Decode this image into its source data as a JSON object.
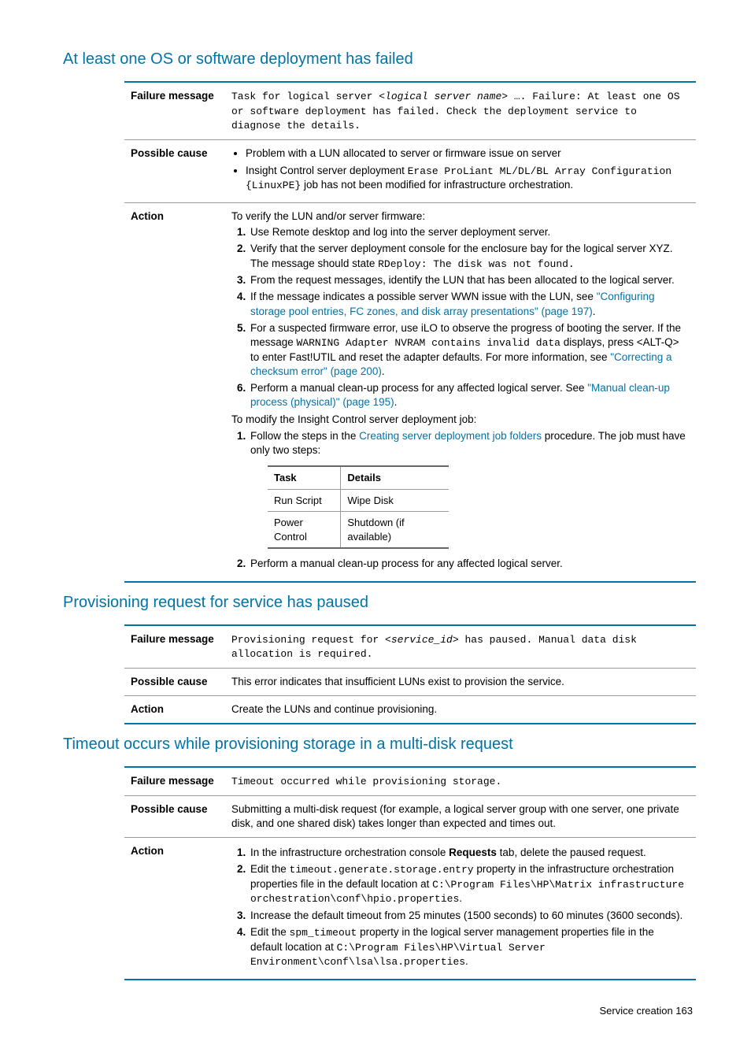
{
  "section1": {
    "heading": "At least one OS or software deployment has failed",
    "labels": {
      "failure": "Failure message",
      "cause": "Possible cause",
      "action": "Action"
    },
    "failure_pre": "Task for logical server ",
    "failure_var": "<logical server name>",
    "failure_post1": " …. Failure: At least one OS or software deployment has failed. Check the deployment service to diagnose the details.",
    "cause_item1": "Problem with a LUN allocated to server or firmware issue on server",
    "cause_item2_pre": "Insight Control server deployment ",
    "cause_item2_code": "Erase ProLiant ML/DL/BL Array Configuration {LinuxPE}",
    "cause_item2_post": " job has not been modified for infrastructure orchestration.",
    "action_intro": "To verify the LUN and/or server firmware:",
    "step1": "Use Remote desktop and log into the server deployment server.",
    "step2_pre": "Verify that the server deployment console for the enclosure bay for the logical server XYZ. The message should state ",
    "step2_code": "RDeploy: The disk was not found.",
    "step3": "From the request messages, identify the LUN that has been allocated to the logical server.",
    "step4_pre": "If the message indicates a possible server WWN issue with the LUN, see ",
    "step4_link": "\"Configuring storage pool entries, FC zones, and disk array presentations\" (page 197)",
    "step4_post": ".",
    "step5_pre": "For a suspected firmware error, use iLO to observe the progress of booting the server. If the message ",
    "step5_code": "WARNING Adapter NVRAM contains invalid data",
    "step5_mid": " displays, press <ALT-Q> to enter Fast!UTIL and reset the adapter defaults. For more information, see ",
    "step5_link": "\"Correcting a checksum error\" (page 200)",
    "step5_post": ".",
    "step6_pre": "Perform a manual clean-up process for any affected logical server. See ",
    "step6_link": "\"Manual clean-up process (physical)\" (page 195)",
    "step6_post": ".",
    "action_intro2": "To modify the Insight Control server deployment job:",
    "step2_1_pre": "Follow the steps in the ",
    "step2_1_link": "Creating server deployment job folders",
    "step2_1_post": " procedure. The job must have only two steps:",
    "inner": {
      "h1": "Task",
      "h2": "Details",
      "r1c1": "Run Script",
      "r1c2": "Wipe Disk",
      "r2c1": "Power Control",
      "r2c2": "Shutdown (if available)"
    },
    "step2_2": "Perform a manual clean-up process for any affected logical server."
  },
  "section2": {
    "heading": "Provisioning request for service has paused",
    "failure_pre": "Provisioning request for ",
    "failure_var": "<service_id>",
    "failure_post": " has paused. Manual data disk allocation is required.",
    "cause": "This error indicates that insufficient LUNs exist to provision the service.",
    "action": "Create the LUNs and continue provisioning."
  },
  "section3": {
    "heading": "Timeout occurs while provisioning storage in a multi-disk request",
    "failure": "Timeout occurred while provisioning storage.",
    "cause": "Submitting a multi-disk request (for example, a logical server group with one server, one private disk, and one shared disk) takes longer than expected and times out.",
    "s1_pre": "In the infrastructure orchestration console ",
    "s1_bold": "Requests",
    "s1_post": " tab, delete the paused request.",
    "s2_pre": "Edit the ",
    "s2_code1": "timeout.generate.storage.entry",
    "s2_mid": " property in the infrastructure orchestration properties file in the default location at ",
    "s2_code2": "C:\\Program Files\\HP\\Matrix infrastructure orchestration\\conf\\hpio.properties",
    "s2_post": ".",
    "s3": "Increase the default timeout from 25 minutes (1500 seconds) to 60 minutes (3600 seconds).",
    "s4_pre": "Edit the ",
    "s4_code1": "spm_timeout",
    "s4_mid": " property in the logical server management properties file in the default location at ",
    "s4_code2": "C:\\Program Files\\HP\\Virtual Server Environment\\conf\\lsa\\lsa.properties",
    "s4_post": "."
  },
  "footer": "Service creation    163"
}
